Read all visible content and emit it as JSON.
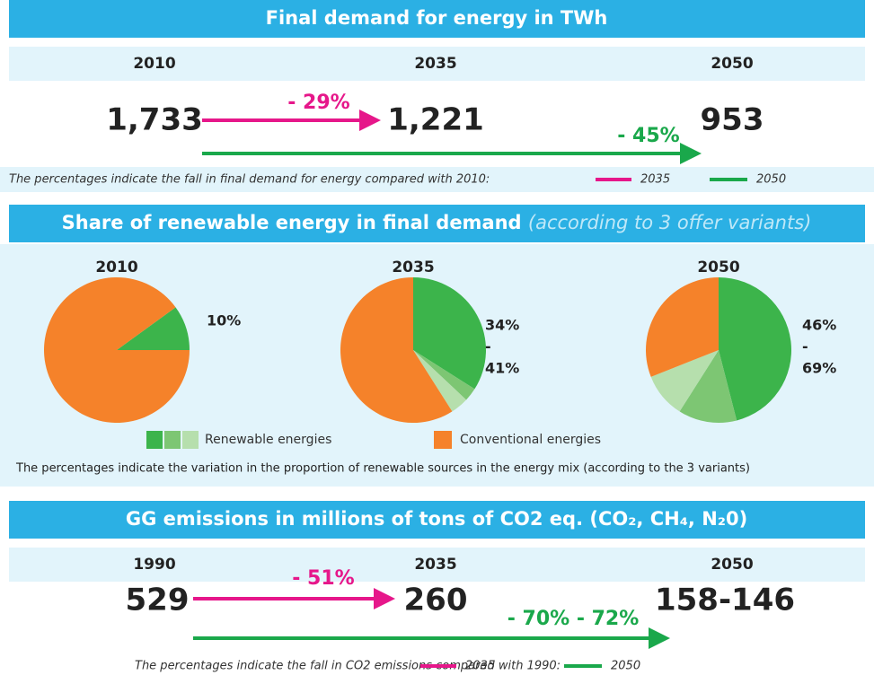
{
  "demand": {
    "title": "Final demand for energy in TWh",
    "years": [
      "2010",
      "2035",
      "2050"
    ],
    "values": [
      "1,733",
      "1,221",
      "953"
    ],
    "changes": [
      "- 29%",
      "- 45%"
    ],
    "note": "The percentages indicate the fall in final demand for energy compared with 2010:",
    "legend": [
      "2035",
      "2050"
    ]
  },
  "renewables": {
    "title": "Share of renewable energy in final demand",
    "subtitle": "(according to 3 offer variants)",
    "pies": [
      {
        "year": "2010",
        "labels": [
          "10%"
        ],
        "slices": [
          {
            "value": 10,
            "color": "#3cb44b"
          },
          {
            "value": 90,
            "color": "#f5822a"
          }
        ]
      },
      {
        "year": "2035",
        "labels": [
          "34%",
          "-",
          "41%"
        ],
        "slices": [
          {
            "value": 34,
            "color": "#3cb44b"
          },
          {
            "value": 3,
            "color": "#7dc673"
          },
          {
            "value": 4,
            "color": "#b6dfad"
          },
          {
            "value": 59,
            "color": "#f5822a"
          }
        ]
      },
      {
        "year": "2050",
        "labels": [
          "46%",
          "-",
          "69%"
        ],
        "slices": [
          {
            "value": 46,
            "color": "#3cb44b"
          },
          {
            "value": 13,
            "color": "#7dc673"
          },
          {
            "value": 10,
            "color": "#b6dfad"
          },
          {
            "value": 31,
            "color": "#f5822a"
          }
        ]
      }
    ],
    "legend": [
      "Renewable energies",
      "Conventional energies"
    ],
    "note": "The percentages indicate the variation in the proportion of renewable sources in the energy mix (according to the 3 variants)"
  },
  "emissions": {
    "title": "GG emissions in millions of tons of CO2 eq. (CO₂, CH₄, N₂0)",
    "years": [
      "1990",
      "2035",
      "2050"
    ],
    "values": [
      "529",
      "260",
      "158-146"
    ],
    "changes": [
      "- 51%",
      "- 70% - 72%"
    ],
    "note": "The percentages indicate the fall in CO2 emissions compared with 1990:",
    "legend": [
      "2035",
      "2050"
    ]
  }
}
